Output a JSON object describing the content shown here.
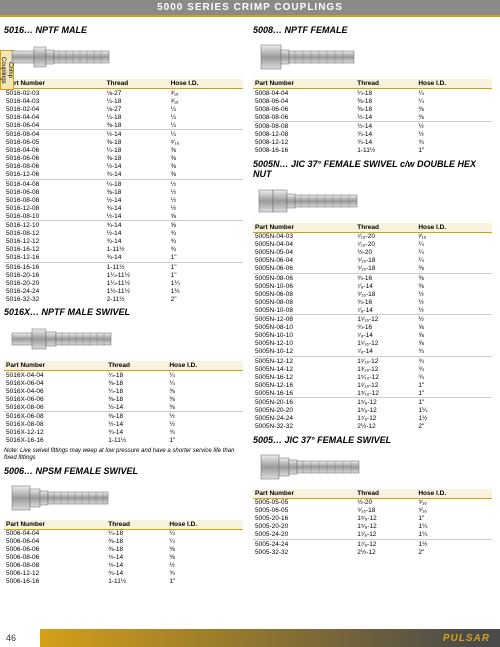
{
  "header": "5000 SERIES CRIMP COUPLINGS",
  "side_tab": "Crimp Couplings",
  "page_num": "46",
  "brand": "PULSAR",
  "col_headers": [
    "Part Number",
    "Thread",
    "Hose I.D."
  ],
  "sections": {
    "s5016": {
      "title": "5016…   NPTF MALE",
      "groups": [
        [
          [
            "5016-02-03",
            "⅛-27",
            "³⁄₁₆"
          ],
          [
            "5016-04-03",
            "¼-18",
            "³⁄₁₆"
          ],
          [
            "5016-02-04",
            "⅛-27",
            "¼"
          ],
          [
            "5016-04-04",
            "¼-18",
            "¼"
          ],
          [
            "5016-06-04",
            "⅜-18",
            "¼"
          ]
        ],
        [
          [
            "5016-08-04",
            "½-14",
            "¼"
          ],
          [
            "5016-06-05",
            "⅜-18",
            "⁵⁄₁₆"
          ],
          [
            "5016-04-06",
            "¼-18",
            "⅜"
          ],
          [
            "5016-06-06",
            "⅜-18",
            "⅜"
          ],
          [
            "5016-08-06",
            "½-14",
            "⅜"
          ],
          [
            "5016-12-06",
            "¾-14",
            "⅜"
          ]
        ],
        [
          [
            "5016-04-08",
            "¼-18",
            "½"
          ],
          [
            "5016-06-08",
            "⅜-18",
            "½"
          ],
          [
            "5016-08-08",
            "½-14",
            "½"
          ],
          [
            "5016-12-08",
            "¾-14",
            "½"
          ],
          [
            "5016-08-10",
            "½-14",
            "⅝"
          ]
        ],
        [
          [
            "5016-12-10",
            "¾-14",
            "⅝"
          ],
          [
            "5016-08-12",
            "½-14",
            "¾"
          ],
          [
            "5016-12-12",
            "¾-14",
            "¾"
          ],
          [
            "5016-16-12",
            "1-11½",
            "¾"
          ],
          [
            "5016-12-16",
            "¾-14",
            "1\""
          ]
        ],
        [
          [
            "5016-16-16",
            "1-11½",
            "1\""
          ],
          [
            "5016-20-16",
            "1¼-11½",
            "1\""
          ],
          [
            "5016-20-20",
            "1¼-11½",
            "1¼"
          ],
          [
            "5016-24-24",
            "1½-11½",
            "1½"
          ],
          [
            "5016-32-32",
            "2-11½",
            "2\""
          ]
        ]
      ]
    },
    "s5016X": {
      "title": "5016X…   NPTF MALE SWIVEL",
      "groups": [
        [
          [
            "5016X-04-04",
            "¼-18",
            "¼"
          ],
          [
            "5016X-06-04",
            "⅜-18",
            "¼"
          ],
          [
            "5016X-04-06",
            "¼-18",
            "⅜"
          ],
          [
            "5016X-06-06",
            "⅜-18",
            "⅜"
          ],
          [
            "5016X-08-06",
            "½-14",
            "⅜"
          ]
        ],
        [
          [
            "5016X-06-08",
            "⅜-18",
            "½"
          ],
          [
            "5016X-08-08",
            "½-14",
            "½"
          ],
          [
            "5016X-12-12",
            "¾-14",
            "¾"
          ],
          [
            "5016X-16-16",
            "1-11½",
            "1\""
          ]
        ]
      ]
    },
    "s5006": {
      "title": "5006…   NPSM FEMALE SWIVEL",
      "groups": [
        [
          [
            "5006-04-04",
            "¼-18",
            "¼"
          ],
          [
            "5006-06-04",
            "⅜-18",
            "¼"
          ],
          [
            "5006-06-06",
            "⅜-18",
            "⅜"
          ],
          [
            "5006-08-06",
            "½-14",
            "⅜"
          ],
          [
            "5006-08-08",
            "½-14",
            "½"
          ],
          [
            "5006-12-12",
            "¾-14",
            "¾"
          ],
          [
            "5006-16-16",
            "1-11½",
            "1\""
          ]
        ]
      ]
    },
    "s5008": {
      "title": "5008…   NPTF FEMALE",
      "groups": [
        [
          [
            "5008-04-04",
            "¼-18",
            "¼"
          ],
          [
            "5008-06-04",
            "⅜-18",
            "¼"
          ],
          [
            "5008-06-06",
            "⅜-18",
            "⅜"
          ],
          [
            "5008-08-06",
            "½-14",
            "⅜"
          ]
        ],
        [
          [
            "5008-08-08",
            "½-14",
            "½"
          ],
          [
            "5008-12-08",
            "¾-14",
            "½"
          ],
          [
            "5008-12-12",
            "¾-14",
            "¾"
          ],
          [
            "5008-16-16",
            "1-11½",
            "1\""
          ]
        ]
      ]
    },
    "s5005N": {
      "title": "5005N…   JIC 37° FEMALE SWIVEL c/w DOUBLE HEX NUT",
      "groups": [
        [
          [
            "5005N-04-03",
            "⁷⁄₁₆-20",
            "³⁄₁₆"
          ],
          [
            "5005N-04-04",
            "⁷⁄₁₆-20",
            "¼"
          ],
          [
            "5005N-05-04",
            "½-20",
            "¼"
          ],
          [
            "5005N-06-04",
            "⁹⁄₁₆-18",
            "¼"
          ],
          [
            "5005N-06-06",
            "⁹⁄₁₆-18",
            "⅜"
          ]
        ],
        [
          [
            "5005N-08-06",
            "¾-16",
            "⅜"
          ],
          [
            "5005N-10-06",
            "⁷⁄₈-14",
            "⅜"
          ],
          [
            "5005N-06-08",
            "⁹⁄₁₆-18",
            "½"
          ],
          [
            "5005N-08-08",
            "¾-16",
            "½"
          ],
          [
            "5005N-10-08",
            "⁷⁄₈-14",
            "½"
          ]
        ],
        [
          [
            "5005N-12-08",
            "1¹⁄₁₆-12",
            "½"
          ],
          [
            "5005N-08-10",
            "¾-16",
            "⅝"
          ],
          [
            "5005N-10-10",
            "⁷⁄₈-14",
            "⅝"
          ],
          [
            "5005N-12-10",
            "1¹⁄₁₆-12",
            "⅝"
          ],
          [
            "5005N-10-12",
            "⁷⁄₈-14",
            "¾"
          ]
        ],
        [
          [
            "5005N-12-12",
            "1¹⁄₁₆-12",
            "¾"
          ],
          [
            "5005N-14-12",
            "1³⁄₁₆-12",
            "¾"
          ],
          [
            "5005N-16-12",
            "1⁵⁄₁₆-12",
            "¾"
          ],
          [
            "5005N-12-16",
            "1¹⁄₁₆-12",
            "1\""
          ],
          [
            "5005N-16-16",
            "1⁵⁄₁₆-12",
            "1\""
          ]
        ],
        [
          [
            "5005N-20-16",
            "1⁵⁄₈-12",
            "1\""
          ],
          [
            "5005N-20-20",
            "1⁵⁄₈-12",
            "1¼"
          ],
          [
            "5005N-24-24",
            "1⁷⁄₈-12",
            "1½"
          ],
          [
            "5005N-32-32",
            "2½-12",
            "2\""
          ]
        ]
      ]
    },
    "s5005": {
      "title": "5005…   JIC 37° FEMALE SWIVEL",
      "groups": [
        [
          [
            "5005-05-05",
            "½-20",
            "⁵⁄₁₆"
          ],
          [
            "5005-06-05",
            "⁹⁄₁₆-18",
            "⁵⁄₁₆"
          ],
          [
            "5005-20-16",
            "1⁵⁄₈-12",
            "1\""
          ],
          [
            "5005-20-20",
            "1⁵⁄₈-12",
            "1¼"
          ],
          [
            "5005-24-20",
            "1⁷⁄₈-12",
            "1¼"
          ]
        ],
        [
          [
            "5005-24-24",
            "1⁷⁄₈-12",
            "1½"
          ],
          [
            "5005-32-32",
            "2½-12",
            "2\""
          ]
        ]
      ]
    }
  },
  "note": "Note: Live swivel fittings may weep at low pressure and have a shorter service life than fixed fittings"
}
